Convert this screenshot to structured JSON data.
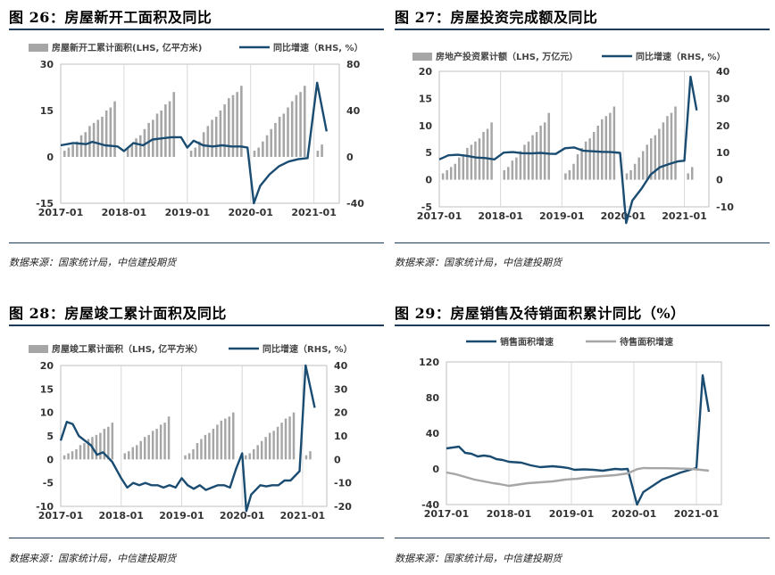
{
  "colors": {
    "bar": "#a6a6a6",
    "line": "#1a4c72",
    "line2": "#a6a6a6",
    "rule": "#1f3b5a",
    "grid": "#d8d8d8"
  },
  "source_text": "数据来源：国家统计局，中信建投期货",
  "chart_data": [
    {
      "id": "c26",
      "type": "bar+line",
      "title": "图 26：房屋新开工面积及同比",
      "legend": [
        "房屋新开工累计面积(LHS, 亿平方米)",
        "同比增速（RHS, %）"
      ],
      "xticks": [
        "2017-01",
        "2018-01",
        "2019-01",
        "2020-01",
        "2021-01"
      ],
      "left_axis": {
        "min": -15,
        "max": 30,
        "ticks": [
          -15,
          0,
          15,
          30
        ]
      },
      "right_axis": {
        "min": -40,
        "max": 80,
        "ticks": [
          -40,
          0,
          40,
          80
        ]
      },
      "bars": [
        [
          0,
          2
        ],
        [
          0,
          3
        ],
        [
          0,
          4
        ],
        [
          0,
          5
        ],
        [
          0,
          7
        ],
        [
          0,
          8
        ],
        [
          0,
          10
        ],
        [
          0,
          11
        ],
        [
          0,
          12
        ],
        [
          0,
          13
        ],
        [
          0,
          15
        ],
        [
          0,
          16
        ],
        [
          0,
          18
        ],
        [
          1,
          3
        ],
        [
          1,
          4
        ],
        [
          1,
          6
        ],
        [
          1,
          7
        ],
        [
          1,
          9
        ],
        [
          1,
          11
        ],
        [
          1,
          12
        ],
        [
          1,
          14
        ],
        [
          1,
          15
        ],
        [
          1,
          17
        ],
        [
          1,
          18
        ],
        [
          1,
          21
        ],
        [
          2,
          2
        ],
        [
          2,
          3
        ],
        [
          2,
          5
        ],
        [
          2,
          8
        ],
        [
          2,
          10
        ],
        [
          2,
          12
        ],
        [
          2,
          13
        ],
        [
          2,
          15
        ],
        [
          2,
          17
        ],
        [
          2,
          19
        ],
        [
          2,
          20
        ],
        [
          2,
          21
        ],
        [
          2,
          23
        ],
        [
          3,
          2
        ],
        [
          3,
          3
        ],
        [
          3,
          5
        ],
        [
          3,
          7
        ],
        [
          3,
          9
        ],
        [
          3,
          11
        ],
        [
          3,
          13
        ],
        [
          3,
          14
        ],
        [
          3,
          16
        ],
        [
          3,
          18
        ],
        [
          3,
          20
        ],
        [
          3,
          21
        ],
        [
          3,
          23
        ],
        [
          4,
          2
        ],
        [
          4,
          4
        ]
      ],
      "line": [
        [
          2017.0,
          10
        ],
        [
          2017.2,
          12
        ],
        [
          2017.4,
          11
        ],
        [
          2017.5,
          13
        ],
        [
          2017.7,
          10
        ],
        [
          2017.9,
          9
        ],
        [
          2018.0,
          5
        ],
        [
          2018.15,
          12
        ],
        [
          2018.3,
          10
        ],
        [
          2018.45,
          15
        ],
        [
          2018.6,
          16
        ],
        [
          2018.75,
          17
        ],
        [
          2018.9,
          17
        ],
        [
          2019.0,
          8
        ],
        [
          2019.1,
          14
        ],
        [
          2019.25,
          10
        ],
        [
          2019.4,
          9
        ],
        [
          2019.55,
          10
        ],
        [
          2019.7,
          9
        ],
        [
          2019.85,
          9
        ],
        [
          2019.95,
          8
        ],
        [
          2020.05,
          -40
        ],
        [
          2020.15,
          -25
        ],
        [
          2020.3,
          -15
        ],
        [
          2020.45,
          -8
        ],
        [
          2020.6,
          -4
        ],
        [
          2020.75,
          -2
        ],
        [
          2020.9,
          -1
        ],
        [
          2021.05,
          64
        ],
        [
          2021.2,
          22
        ]
      ]
    },
    {
      "id": "c27",
      "type": "bar+line",
      "title": "图 27：房屋投资完成额及同比",
      "legend": [
        "房地产投资累计额（LHS, 万亿元）",
        "同比增速（RHS, %）"
      ],
      "xticks": [
        "2017-01",
        "2018-01",
        "2019-01",
        "2020-01",
        "2021-01"
      ],
      "left_axis": {
        "min": -5,
        "max": 20,
        "ticks": [
          -5,
          0,
          5,
          10,
          15,
          20
        ]
      },
      "right_axis": {
        "min": -10,
        "max": 40,
        "ticks": [
          -10,
          0,
          10,
          20,
          30,
          40
        ]
      },
      "bars": [],
      "line": [
        [
          2017.0,
          7.5
        ],
        [
          2017.15,
          9
        ],
        [
          2017.3,
          9.2
        ],
        [
          2017.45,
          8.8
        ],
        [
          2017.6,
          8.2
        ],
        [
          2017.75,
          8
        ],
        [
          2017.9,
          7.5
        ],
        [
          2018.05,
          10
        ],
        [
          2018.2,
          10.2
        ],
        [
          2018.35,
          9.8
        ],
        [
          2018.5,
          9.7
        ],
        [
          2018.65,
          9.9
        ],
        [
          2018.8,
          9.6
        ],
        [
          2018.9,
          9.5
        ],
        [
          2019.05,
          11.6
        ],
        [
          2019.2,
          11.9
        ],
        [
          2019.35,
          10.7
        ],
        [
          2019.5,
          10.5
        ],
        [
          2019.65,
          10.3
        ],
        [
          2019.8,
          10.2
        ],
        [
          2019.95,
          9.9
        ],
        [
          2020.05,
          -16
        ],
        [
          2020.15,
          -7.7
        ],
        [
          2020.3,
          -3.3
        ],
        [
          2020.45,
          1.9
        ],
        [
          2020.6,
          4.6
        ],
        [
          2020.75,
          5.8
        ],
        [
          2020.9,
          6.8
        ],
        [
          2021.0,
          7
        ],
        [
          2021.1,
          38
        ],
        [
          2021.2,
          25.6
        ]
      ]
    },
    {
      "id": "c28",
      "type": "bar+line",
      "title": "图 28：房屋竣工累计面积及同比",
      "legend": [
        "房屋竣工累计面积（LHS, 亿平方米）",
        "同比增速（RHS, %）"
      ],
      "xticks": [
        "2017-01",
        "2018-01",
        "2019-01",
        "2020-01",
        "2021-01"
      ],
      "left_axis": {
        "min": -10,
        "max": 20,
        "ticks": [
          -10,
          -5,
          0,
          5,
          10,
          15,
          20
        ]
      },
      "right_axis": {
        "min": -20,
        "max": 40,
        "ticks": [
          -20,
          -10,
          0,
          10,
          20,
          30,
          40
        ]
      },
      "bars": [],
      "line": [
        [
          2017.0,
          8
        ],
        [
          2017.1,
          16
        ],
        [
          2017.2,
          15
        ],
        [
          2017.3,
          10
        ],
        [
          2017.4,
          8
        ],
        [
          2017.5,
          6
        ],
        [
          2017.6,
          2
        ],
        [
          2017.7,
          3
        ],
        [
          2017.85,
          -1
        ],
        [
          2018.0,
          -8
        ],
        [
          2018.1,
          -12
        ],
        [
          2018.2,
          -10
        ],
        [
          2018.3,
          -11
        ],
        [
          2018.4,
          -10
        ],
        [
          2018.5,
          -11
        ],
        [
          2018.6,
          -11
        ],
        [
          2018.7,
          -12
        ],
        [
          2018.8,
          -11
        ],
        [
          2018.9,
          -12
        ],
        [
          2019.0,
          -8
        ],
        [
          2019.1,
          -11
        ],
        [
          2019.2,
          -12.5
        ],
        [
          2019.3,
          -11
        ],
        [
          2019.4,
          -13
        ],
        [
          2019.5,
          -12
        ],
        [
          2019.6,
          -11
        ],
        [
          2019.7,
          -11
        ],
        [
          2019.8,
          -12
        ],
        [
          2019.9,
          -4
        ],
        [
          2020.0,
          2.6
        ],
        [
          2020.07,
          -22
        ],
        [
          2020.15,
          -15
        ],
        [
          2020.3,
          -11
        ],
        [
          2020.4,
          -11.5
        ],
        [
          2020.5,
          -11
        ],
        [
          2020.6,
          -11
        ],
        [
          2020.7,
          -9
        ],
        [
          2020.8,
          -9
        ],
        [
          2020.95,
          -5
        ],
        [
          2021.05,
          40
        ],
        [
          2021.2,
          22
        ]
      ]
    },
    {
      "id": "c29",
      "type": "line",
      "title": "图 29：房屋销售及待销面积累计同比（%）",
      "legend": [
        "销售面积增速",
        "待售面积增速"
      ],
      "xticks": [
        "2017-01",
        "2018-01",
        "2019-01",
        "2020-01",
        "2021-01"
      ],
      "left_axis": {
        "min": -40,
        "max": 120,
        "ticks": [
          -40,
          0,
          40,
          80,
          120
        ]
      },
      "series": [
        {
          "name": "销售面积增速",
          "points": [
            [
              2017.0,
              23
            ],
            [
              2017.1,
              24
            ],
            [
              2017.2,
              25
            ],
            [
              2017.3,
              18
            ],
            [
              2017.4,
              17
            ],
            [
              2017.5,
              14
            ],
            [
              2017.6,
              15
            ],
            [
              2017.7,
              14
            ],
            [
              2017.8,
              11
            ],
            [
              2017.9,
              10
            ],
            [
              2018.0,
              8
            ],
            [
              2018.2,
              7
            ],
            [
              2018.35,
              4
            ],
            [
              2018.5,
              2
            ],
            [
              2018.7,
              3
            ],
            [
              2018.85,
              2
            ],
            [
              2018.95,
              1
            ],
            [
              2019.05,
              -1
            ],
            [
              2019.2,
              -0.5
            ],
            [
              2019.35,
              -1
            ],
            [
              2019.5,
              -2
            ],
            [
              2019.6,
              -1
            ],
            [
              2019.7,
              0
            ],
            [
              2019.8,
              -0.5
            ],
            [
              2019.9,
              0
            ],
            [
              2020.05,
              -40
            ],
            [
              2020.15,
              -26
            ],
            [
              2020.3,
              -19
            ],
            [
              2020.45,
              -12
            ],
            [
              2020.6,
              -8
            ],
            [
              2020.75,
              -4
            ],
            [
              2020.9,
              -1
            ],
            [
              2021.0,
              1
            ],
            [
              2021.1,
              105
            ],
            [
              2021.2,
              64
            ]
          ]
        },
        {
          "name": "待售面积增速",
          "points": [
            [
              2017.0,
              -4
            ],
            [
              2017.15,
              -6
            ],
            [
              2017.3,
              -9
            ],
            [
              2017.45,
              -12
            ],
            [
              2017.6,
              -14
            ],
            [
              2017.75,
              -16
            ],
            [
              2017.85,
              -17
            ],
            [
              2018.0,
              -19
            ],
            [
              2018.1,
              -18
            ],
            [
              2018.3,
              -16
            ],
            [
              2018.5,
              -15
            ],
            [
              2018.7,
              -14
            ],
            [
              2018.9,
              -12
            ],
            [
              2019.1,
              -11
            ],
            [
              2019.3,
              -9
            ],
            [
              2019.5,
              -8
            ],
            [
              2019.7,
              -7
            ],
            [
              2019.9,
              -5
            ],
            [
              2020.05,
              -0.3
            ],
            [
              2020.15,
              1
            ],
            [
              2020.3,
              0.8
            ],
            [
              2020.5,
              0.8
            ],
            [
              2020.7,
              0.5
            ],
            [
              2020.9,
              0
            ],
            [
              2021.0,
              -0.5
            ],
            [
              2021.2,
              -2
            ]
          ]
        }
      ]
    }
  ]
}
